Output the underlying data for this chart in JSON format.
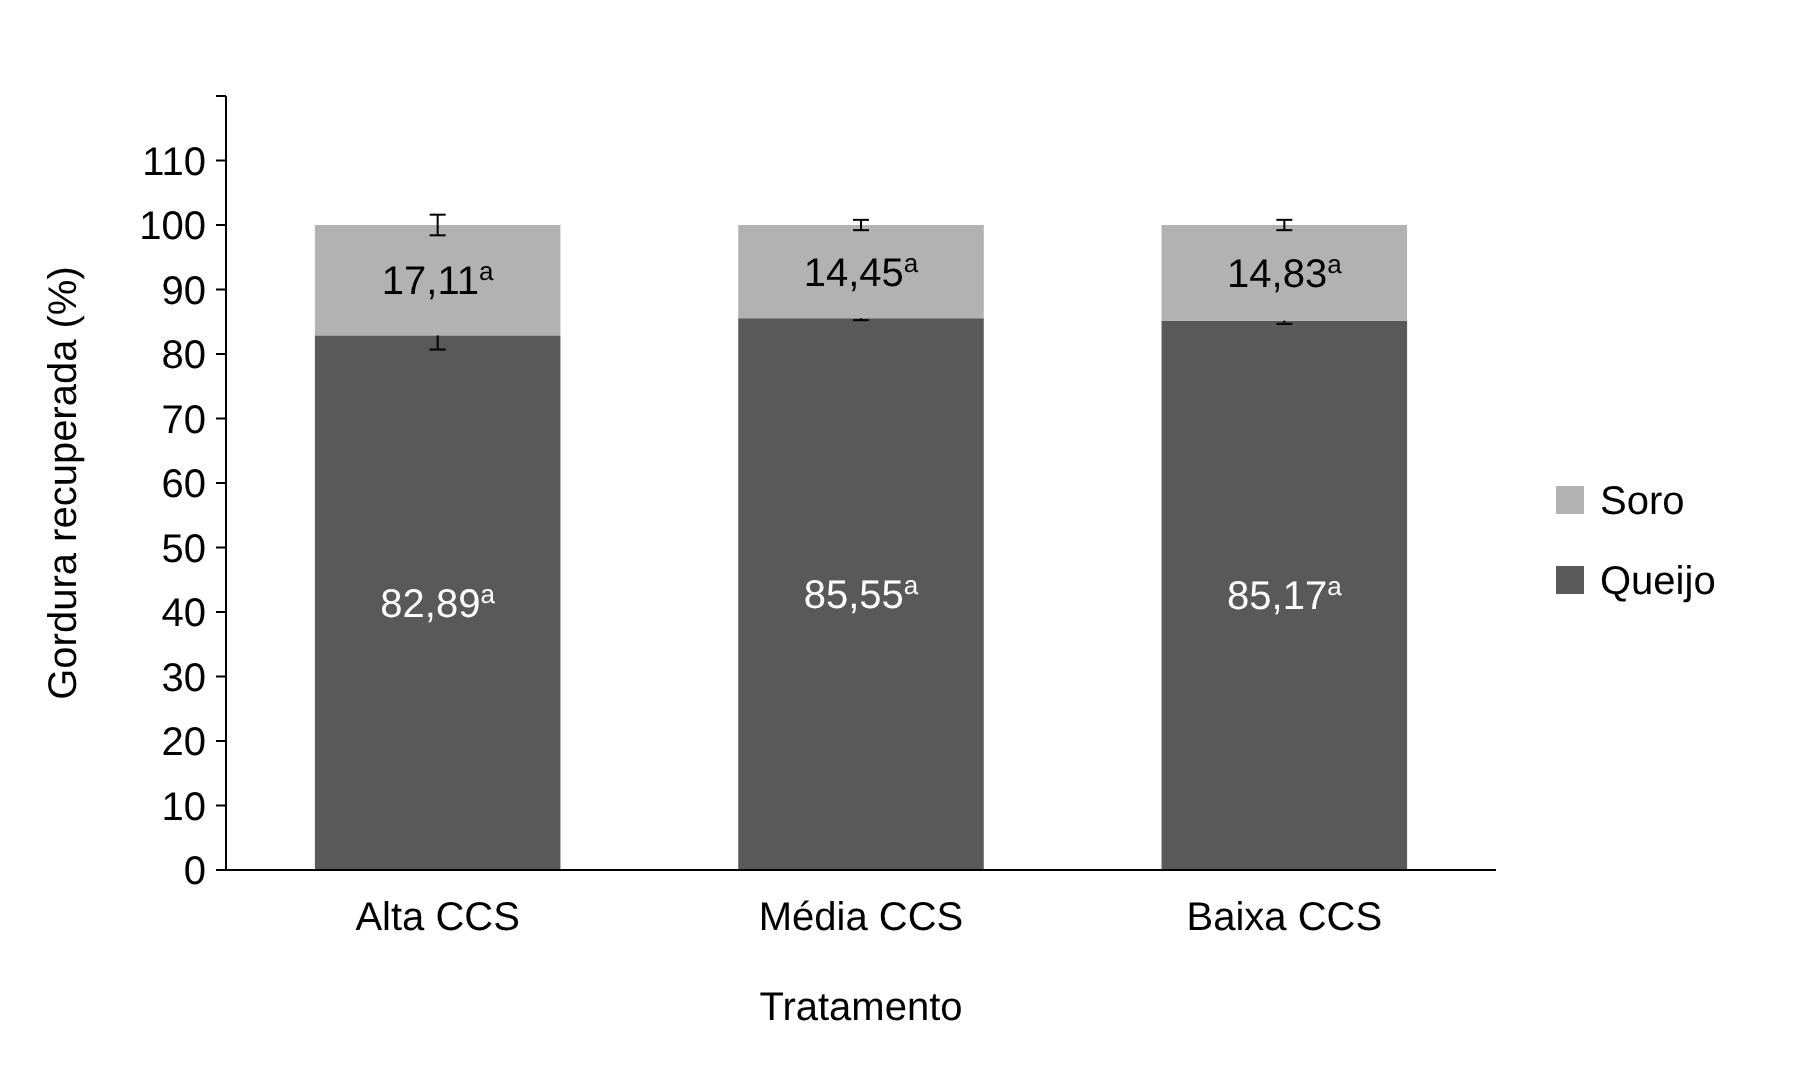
{
  "chart_data": {
    "type": "bar",
    "stacked": true,
    "xlabel": "Tratamento",
    "ylabel": "Gordura recuperada (%)",
    "categories": [
      "Alta CCS",
      "Média CCS",
      "Baixa CCS"
    ],
    "series": [
      {
        "name": "Queijo",
        "color": "#595959",
        "values": [
          82.89,
          85.55,
          85.17
        ],
        "errors": [
          2.2,
          0.3,
          0.5
        ],
        "value_labels": [
          "82,89$^{a}$",
          "85,55$^{a}$",
          "85,17$^{a}$"
        ]
      },
      {
        "name": "Soro",
        "color": "#b2b2b2",
        "values": [
          17.11,
          14.45,
          14.83
        ],
        "errors": [
          1.6,
          0.8,
          0.8
        ],
        "value_labels": [
          "17,11$^{a}$",
          "14,45$^{a}$",
          "14,83$^{a}$"
        ]
      }
    ],
    "ylim": [
      0,
      120
    ],
    "yticks": [
      0,
      10,
      20,
      30,
      40,
      50,
      60,
      70,
      80,
      90,
      100,
      110,
      {
        "value": 120,
        "label": null
      }
    ],
    "legend": "right",
    "grid": false
  }
}
